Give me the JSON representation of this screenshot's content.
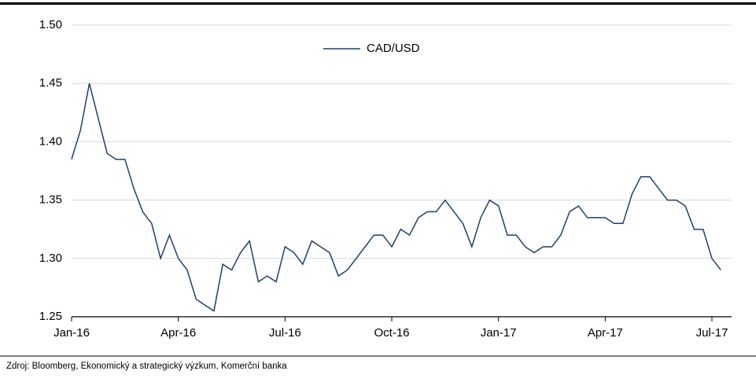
{
  "chart_data": {
    "type": "line",
    "categories": [
      "Jan-16",
      null,
      null,
      null,
      null,
      null,
      null,
      null,
      null,
      null,
      null,
      null,
      "Apr-16",
      null,
      null,
      null,
      null,
      null,
      null,
      null,
      null,
      null,
      null,
      null,
      "Jul-16",
      null,
      null,
      null,
      null,
      null,
      null,
      null,
      null,
      null,
      null,
      null,
      "Oct-16",
      null,
      null,
      null,
      null,
      null,
      null,
      null,
      null,
      null,
      null,
      null,
      "Jan-17",
      null,
      null,
      null,
      null,
      null,
      null,
      null,
      null,
      null,
      null,
      null,
      "Apr-17",
      null,
      null,
      null,
      null,
      null,
      null,
      null,
      null,
      null,
      null,
      null,
      "Jul-17",
      null
    ],
    "series": [
      {
        "name": "CAD/USD",
        "color": "#1f3f6e",
        "values": [
          1.385,
          1.41,
          1.45,
          1.42,
          1.39,
          1.385,
          1.385,
          1.36,
          1.34,
          1.33,
          1.3,
          1.32,
          1.3,
          1.29,
          1.265,
          1.26,
          1.255,
          1.295,
          1.29,
          1.305,
          1.315,
          1.28,
          1.285,
          1.28,
          1.31,
          1.305,
          1.295,
          1.315,
          1.31,
          1.305,
          1.285,
          1.29,
          1.3,
          1.31,
          1.32,
          1.32,
          1.31,
          1.325,
          1.32,
          1.335,
          1.34,
          1.34,
          1.35,
          1.34,
          1.33,
          1.31,
          1.335,
          1.35,
          1.345,
          1.32,
          1.32,
          1.31,
          1.305,
          1.31,
          1.31,
          1.32,
          1.34,
          1.345,
          1.335,
          1.335,
          1.335,
          1.33,
          1.33,
          1.355,
          1.37,
          1.37,
          1.36,
          1.35,
          1.35,
          1.345,
          1.325,
          1.325,
          1.3,
          1.29
        ]
      }
    ],
    "ylim": [
      1.25,
      1.5
    ],
    "yticks": [
      {
        "value": 1.25,
        "label": "1.25"
      },
      {
        "value": 1.3,
        "label": "1.30"
      },
      {
        "value": 1.35,
        "label": "1.35"
      },
      {
        "value": 1.4,
        "label": "1.40"
      },
      {
        "value": 1.45,
        "label": "1.45"
      },
      {
        "value": 1.5,
        "label": "1.50"
      }
    ],
    "grid": true,
    "legend": "top",
    "source": "Zdroj: Bloomberg, Ekonomický a strategický výzkum, Komerční banka"
  }
}
